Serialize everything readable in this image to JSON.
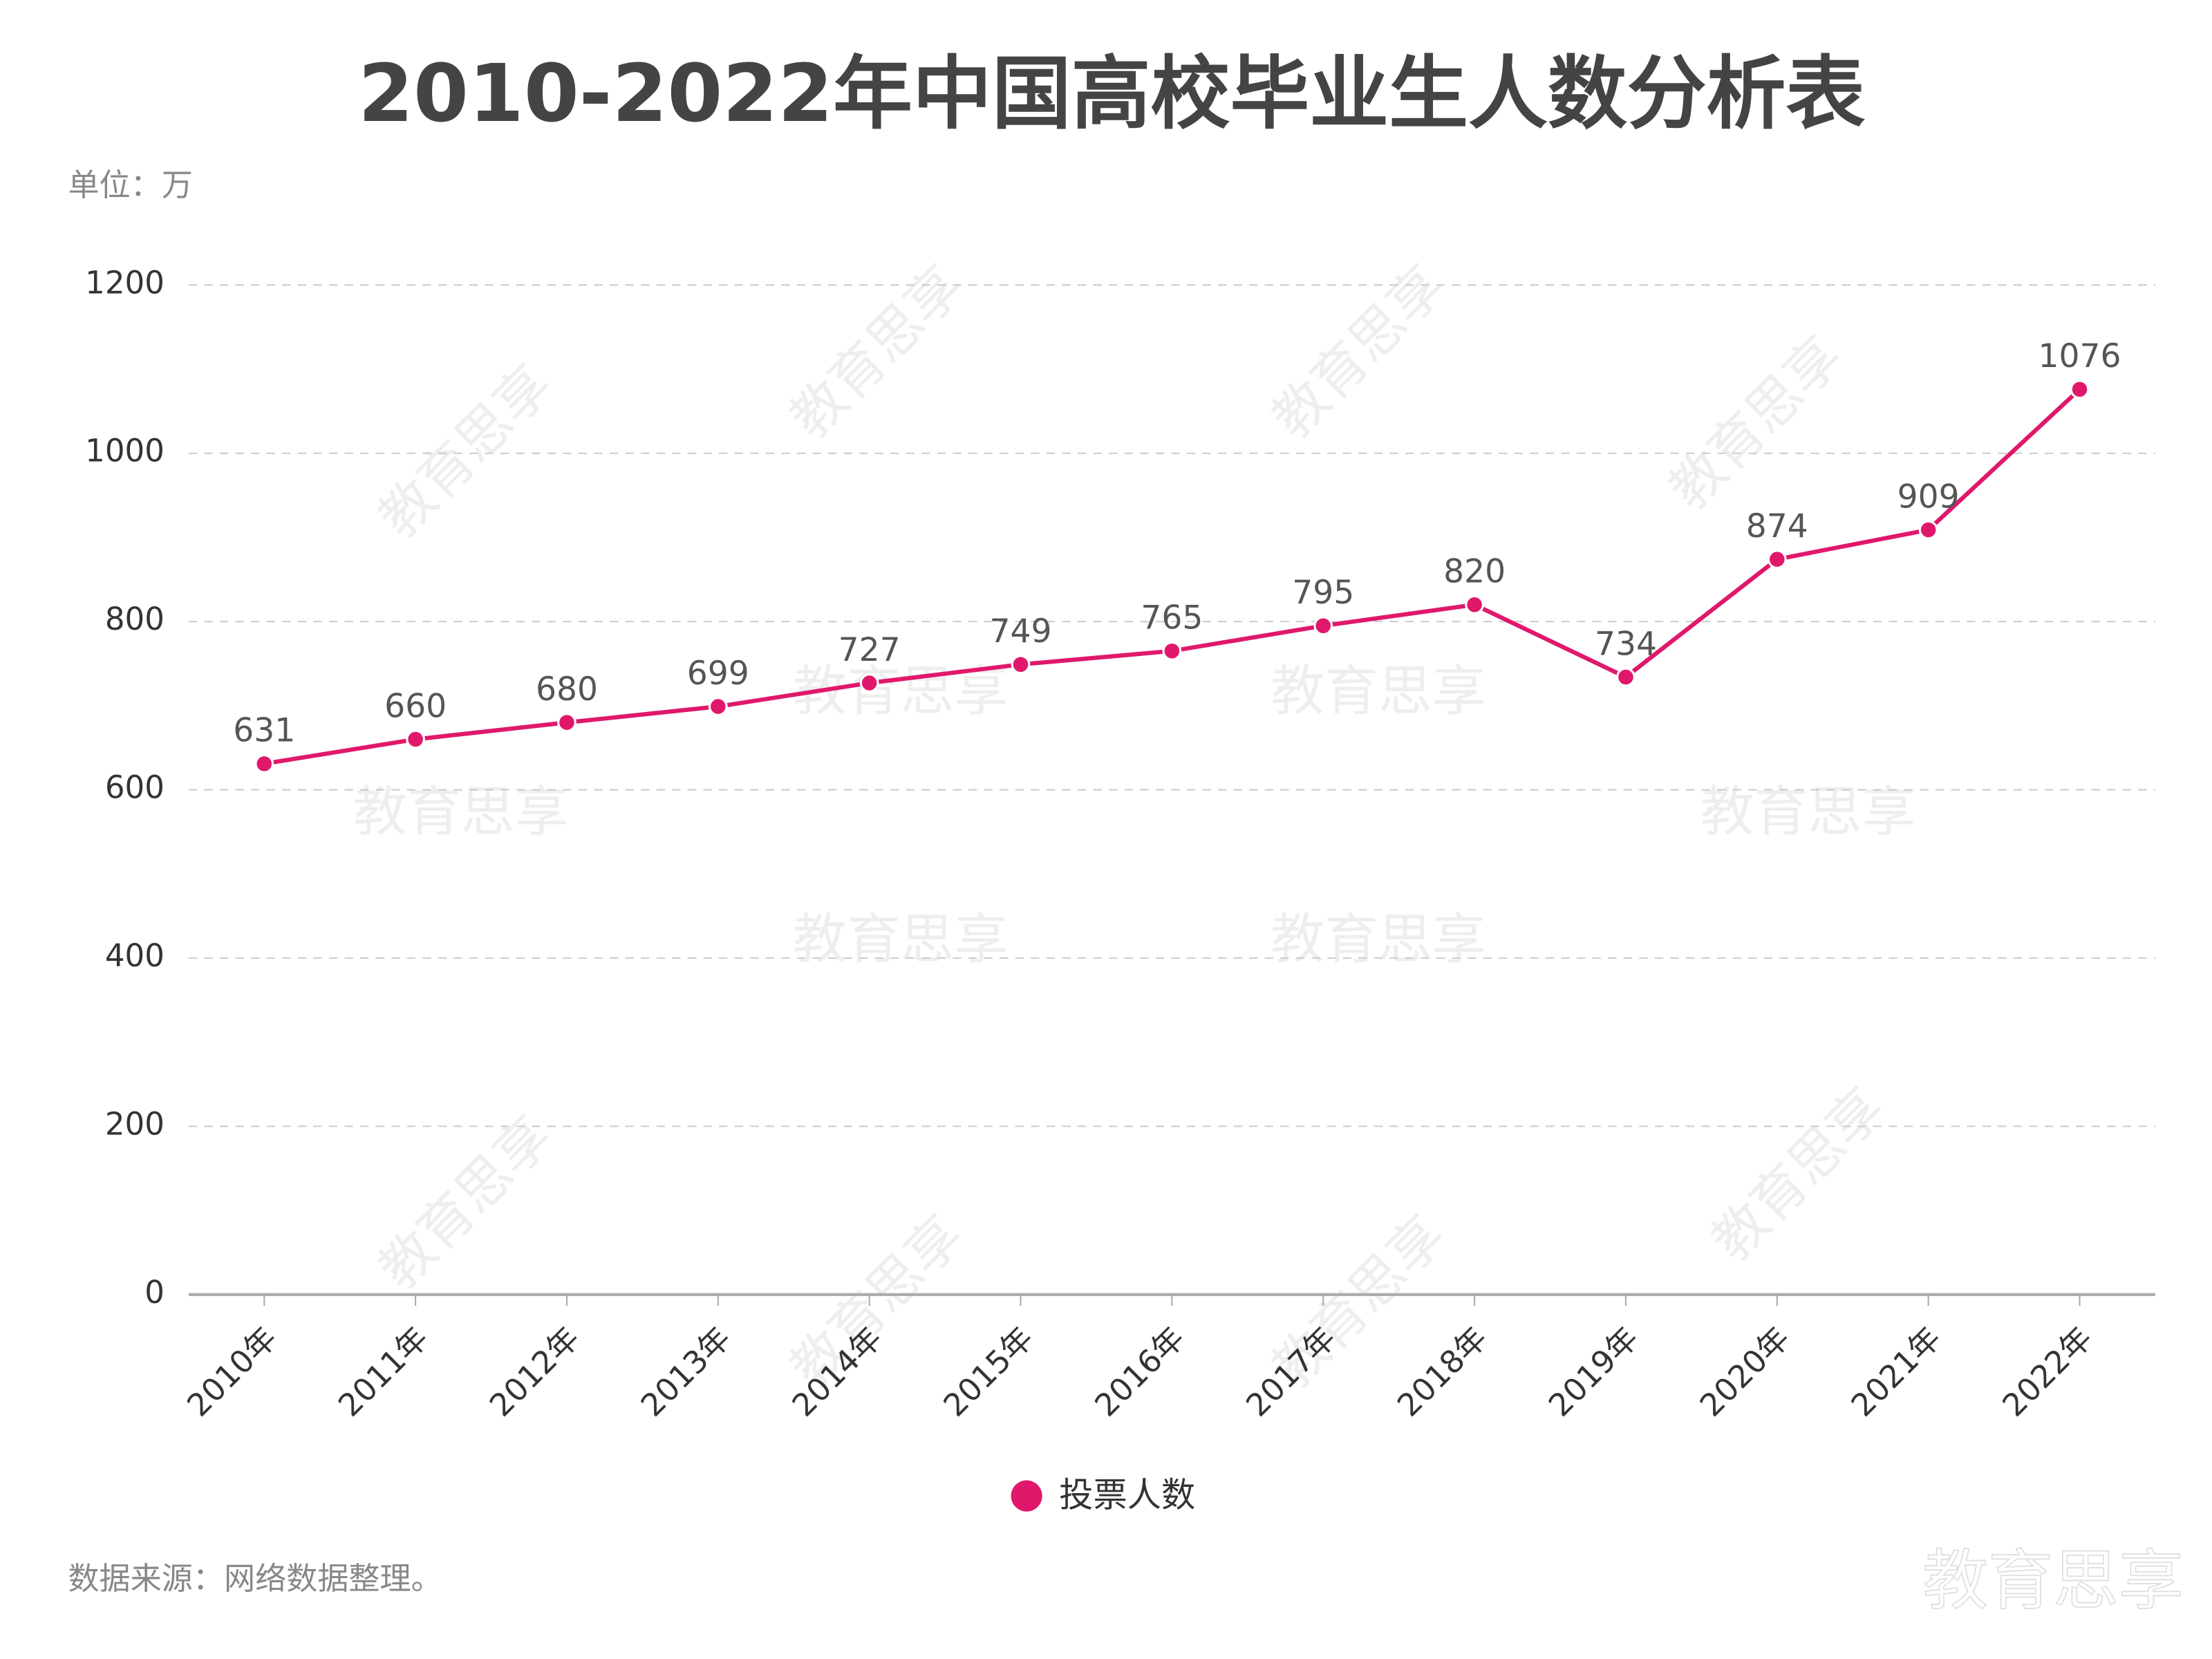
{
  "chart_data": {
    "type": "line",
    "title": "2010-2022年中国高校毕业生人数分析表",
    "unit_label": "单位：万",
    "source": "数据来源：网络数据整理。",
    "watermark": "教育思享",
    "categories": [
      "2010年",
      "2011年",
      "2012年",
      "2013年",
      "2014年",
      "2015年",
      "2016年",
      "2017年",
      "2018年",
      "2019年",
      "2020年",
      "2021年",
      "2022年"
    ],
    "series": [
      {
        "name": "投票人数",
        "color": "#e0186c",
        "values": [
          631,
          660,
          680,
          699,
          727,
          749,
          765,
          795,
          820,
          734,
          874,
          909,
          1076
        ]
      }
    ],
    "ylim": [
      0,
      1200
    ],
    "yticks": [
      0,
      200,
      400,
      600,
      800,
      1000,
      1200
    ],
    "grid": true,
    "legend": "bottom"
  }
}
